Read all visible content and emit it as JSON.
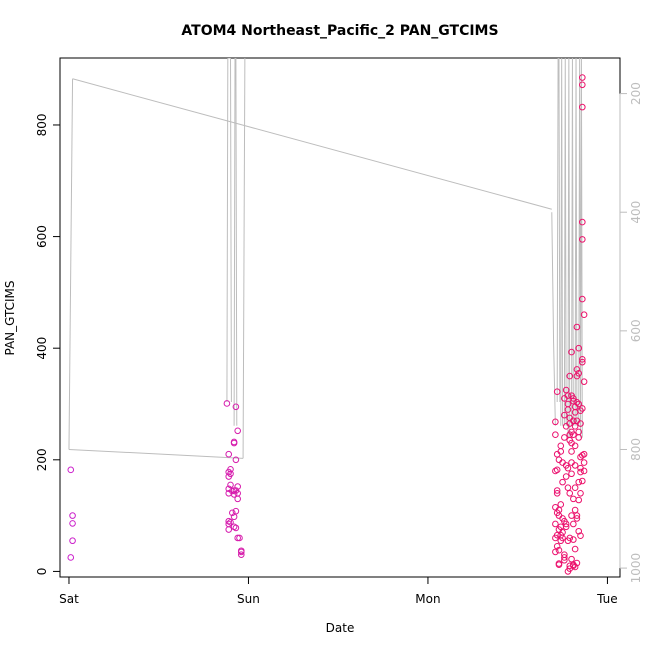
{
  "chart_data": {
    "type": "scatter",
    "title": "ATOM4 Northeast_Pacific_2 PAN_GTCIMS",
    "xlabel": "Date",
    "ylabel": "PAN_GTCIMS",
    "x_ticks": [
      "Sat",
      "Sun",
      "Mon",
      "Tue"
    ],
    "y_ticks": [
      0,
      200,
      400,
      600,
      800
    ],
    "right_ticks": [
      200,
      400,
      600,
      800,
      1000
    ],
    "xlim_days": [
      -0.05,
      3.07
    ],
    "ylim": [
      -10,
      920
    ],
    "right_ylim": [
      1015,
      140
    ],
    "series": [
      {
        "points_color": "#e8117f",
        "grad_from": "#cc22cc",
        "grad_to": "#ee1166",
        "points": [
          [
            0.01,
            182
          ],
          [
            0.01,
            25
          ],
          [
            0.02,
            100
          ],
          [
            0.02,
            86
          ],
          [
            0.02,
            55
          ],
          [
            0.88,
            301
          ],
          [
            0.89,
            178
          ],
          [
            0.89,
            210
          ],
          [
            0.89,
            170
          ],
          [
            0.89,
            148
          ],
          [
            0.89,
            140
          ],
          [
            0.89,
            90
          ],
          [
            0.89,
            85
          ],
          [
            0.89,
            75
          ],
          [
            0.9,
            183
          ],
          [
            0.9,
            175
          ],
          [
            0.9,
            155
          ],
          [
            0.9,
            88
          ],
          [
            0.91,
            144
          ],
          [
            0.91,
            105
          ],
          [
            0.92,
            232
          ],
          [
            0.92,
            230
          ],
          [
            0.92,
            145
          ],
          [
            0.92,
            138
          ],
          [
            0.92,
            98
          ],
          [
            0.92,
            80
          ],
          [
            0.93,
            295
          ],
          [
            0.93,
            200
          ],
          [
            0.93,
            145
          ],
          [
            0.93,
            108
          ],
          [
            0.93,
            78
          ],
          [
            0.94,
            252
          ],
          [
            0.94,
            152
          ],
          [
            0.94,
            140
          ],
          [
            0.94,
            130
          ],
          [
            0.94,
            60
          ],
          [
            0.95,
            60
          ],
          [
            0.96,
            30
          ],
          [
            0.96,
            35
          ],
          [
            0.96,
            37
          ],
          [
            2.71,
            268
          ],
          [
            2.71,
            245
          ],
          [
            2.71,
            180
          ],
          [
            2.71,
            115
          ],
          [
            2.71,
            85
          ],
          [
            2.71,
            60
          ],
          [
            2.71,
            35
          ],
          [
            2.72,
            322
          ],
          [
            2.72,
            210
          ],
          [
            2.72,
            182
          ],
          [
            2.72,
            145
          ],
          [
            2.72,
            140
          ],
          [
            2.72,
            105
          ],
          [
            2.72,
            65
          ],
          [
            2.72,
            45
          ],
          [
            2.73,
            200
          ],
          [
            2.73,
            110
          ],
          [
            2.73,
            100
          ],
          [
            2.73,
            75
          ],
          [
            2.73,
            38
          ],
          [
            2.73,
            14
          ],
          [
            2.73,
            12
          ],
          [
            2.74,
            225
          ],
          [
            2.74,
            215
          ],
          [
            2.74,
            120
          ],
          [
            2.74,
            80
          ],
          [
            2.74,
            65
          ],
          [
            2.74,
            55
          ],
          [
            2.75,
            195
          ],
          [
            2.75,
            160
          ],
          [
            2.75,
            95
          ],
          [
            2.75,
            70
          ],
          [
            2.75,
            60
          ],
          [
            2.76,
            310
          ],
          [
            2.76,
            280
          ],
          [
            2.76,
            240
          ],
          [
            2.76,
            90
          ],
          [
            2.76,
            30
          ],
          [
            2.76,
            25
          ],
          [
            2.76,
            20
          ],
          [
            2.77,
            325
          ],
          [
            2.77,
            260
          ],
          [
            2.77,
            190
          ],
          [
            2.77,
            170
          ],
          [
            2.77,
            85
          ],
          [
            2.77,
            80
          ],
          [
            2.78,
            315
          ],
          [
            2.78,
            300
          ],
          [
            2.78,
            290
          ],
          [
            2.78,
            185
          ],
          [
            2.78,
            150
          ],
          [
            2.78,
            55
          ],
          [
            2.78,
            0
          ],
          [
            2.79,
            350
          ],
          [
            2.79,
            275
          ],
          [
            2.79,
            265
          ],
          [
            2.79,
            245
          ],
          [
            2.79,
            235
          ],
          [
            2.79,
            140
          ],
          [
            2.79,
            60
          ],
          [
            2.79,
            10
          ],
          [
            2.79,
            5
          ],
          [
            2.8,
            393
          ],
          [
            2.8,
            315
          ],
          [
            2.8,
            250
          ],
          [
            2.8,
            230
          ],
          [
            2.8,
            215
          ],
          [
            2.8,
            195
          ],
          [
            2.8,
            175
          ],
          [
            2.8,
            100
          ],
          [
            2.8,
            22
          ],
          [
            2.81,
            310
          ],
          [
            2.81,
            305
          ],
          [
            2.81,
            270
          ],
          [
            2.81,
            245
          ],
          [
            2.81,
            130
          ],
          [
            2.81,
            85
          ],
          [
            2.81,
            57
          ],
          [
            2.81,
            12
          ],
          [
            2.81,
            10
          ],
          [
            2.82,
            295
          ],
          [
            2.82,
            285
          ],
          [
            2.82,
            260
          ],
          [
            2.82,
            225
          ],
          [
            2.82,
            190
          ],
          [
            2.82,
            150
          ],
          [
            2.82,
            110
          ],
          [
            2.82,
            40
          ],
          [
            2.82,
            8
          ],
          [
            2.83,
            438
          ],
          [
            2.83,
            362
          ],
          [
            2.83,
            350
          ],
          [
            2.83,
            303
          ],
          [
            2.83,
            270
          ],
          [
            2.83,
            100
          ],
          [
            2.83,
            95
          ],
          [
            2.83,
            15
          ],
          [
            2.84,
            400
          ],
          [
            2.84,
            355
          ],
          [
            2.84,
            300
          ],
          [
            2.84,
            250
          ],
          [
            2.84,
            240
          ],
          [
            2.84,
            160
          ],
          [
            2.84,
            128
          ],
          [
            2.84,
            72
          ],
          [
            2.85,
            288
          ],
          [
            2.85,
            265
          ],
          [
            2.85,
            205
          ],
          [
            2.85,
            185
          ],
          [
            2.85,
            178
          ],
          [
            2.85,
            140
          ],
          [
            2.85,
            64
          ],
          [
            2.86,
            885
          ],
          [
            2.86,
            872
          ],
          [
            2.86,
            832
          ],
          [
            2.86,
            626
          ],
          [
            2.86,
            595
          ],
          [
            2.86,
            488
          ],
          [
            2.86,
            380
          ],
          [
            2.86,
            375
          ],
          [
            2.86,
            292
          ],
          [
            2.86,
            208
          ],
          [
            2.86,
            162
          ],
          [
            2.87,
            460
          ],
          [
            2.87,
            340
          ],
          [
            2.87,
            210
          ],
          [
            2.87,
            195
          ],
          [
            2.87,
            180
          ]
        ]
      }
    ],
    "altitude_line": {
      "color": "#bdbdbd",
      "x_days": [
        0.01,
        0.02,
        0.05,
        0.97,
        0.98,
        0.99
      ],
      "right_values": [
        890,
        175,
        175,
        815,
        814,
        814
      ],
      "extra_segments": [
        {
          "x_days": [
            0.02,
            0.97
          ],
          "right_values": [
            175,
            800
          ]
        },
        {
          "x_days": [
            0.0,
            0.01,
            0.03
          ],
          "right_values": [
            800,
            175,
            175
          ]
        }
      ],
      "spikes": [
        {
          "x_days": [
            0.88,
            0.885,
            0.9,
            0.905
          ],
          "right_values": [
            720,
            140,
            140,
            720
          ]
        },
        {
          "x_days": [
            0.92,
            0.925,
            0.93,
            0.935
          ],
          "right_values": [
            760,
            140,
            140,
            760
          ]
        },
        {
          "x_days": [
            2.69,
            2.7,
            2.71
          ],
          "right_values": [
            400,
            620,
            760
          ]
        },
        {
          "x_days": [
            2.72,
            2.725,
            2.73,
            2.735
          ],
          "right_values": [
            720,
            140,
            140,
            720
          ]
        },
        {
          "x_days": [
            2.74,
            2.745,
            2.75
          ],
          "right_values": [
            760,
            140,
            760
          ]
        },
        {
          "x_days": [
            2.76,
            2.765,
            2.77
          ],
          "right_values": [
            760,
            140,
            760
          ]
        },
        {
          "x_days": [
            2.78,
            2.785,
            2.79
          ],
          "right_values": [
            780,
            140,
            780
          ]
        },
        {
          "x_days": [
            2.8,
            2.805,
            2.81
          ],
          "right_values": [
            760,
            140,
            760
          ]
        },
        {
          "x_days": [
            2.82,
            2.825,
            2.83
          ],
          "right_values": [
            760,
            140,
            760
          ]
        },
        {
          "x_days": [
            2.84,
            2.845,
            2.85
          ],
          "right_values": [
            760,
            140,
            760
          ]
        },
        {
          "x_days": [
            2.85,
            2.855,
            2.86
          ],
          "right_values": [
            780,
            140,
            780
          ]
        }
      ]
    }
  }
}
